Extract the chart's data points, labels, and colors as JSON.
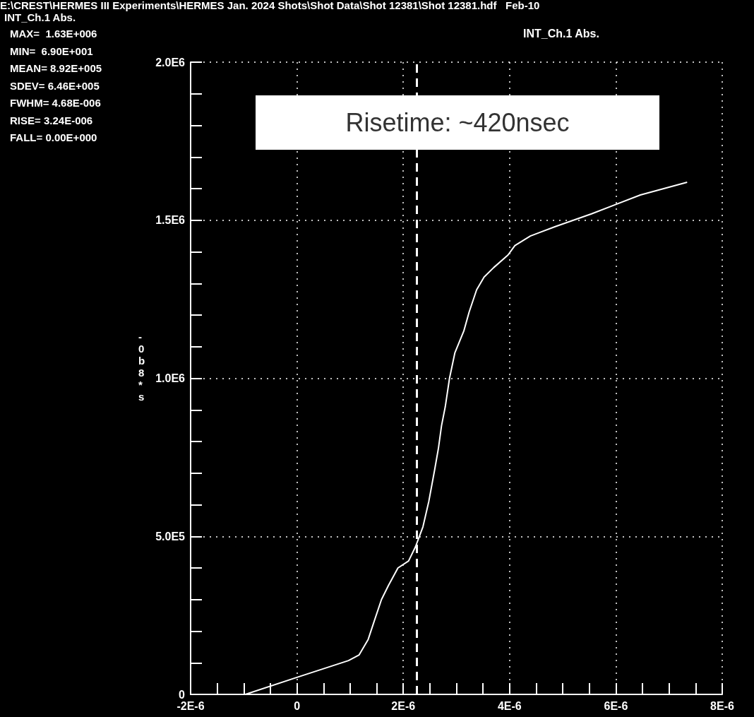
{
  "chart_data": {
    "type": "line",
    "title": "INT_Ch.1 Abs.",
    "ylabel": "-0b8*s",
    "annotations": [
      "E:\\CREST\\HERMES III Experiments\\HERMES Jan. 2024 Shots\\Shot Data\\Shot 12381\\Shot 12381.hdf   Feb-10",
      "INT_Ch.1 Abs.",
      "MAX=  1.63E+006",
      "MIN=  6.90E+001",
      "MEAN= 8.92E+005",
      "SDEV= 6.46E+005",
      "FWHM= 4.68E-006",
      "RISE= 3.24E-006",
      "FALL= 0.00E+000",
      "Risetime: ~420nsec"
    ],
    "x": [
      -9.7e-07,
      0,
      9.7e-07,
      1.17e-06,
      1.34e-06,
      1.45e-06,
      1.59e-06,
      1.72e-06,
      1.9e-06,
      2.1e-06,
      2.23e-06,
      2.37e-06,
      2.48e-06,
      2.59e-06,
      2.66e-06,
      2.72e-06,
      2.79e-06,
      2.87e-06,
      2.97e-06,
      3.14e-06,
      3.24e-06,
      3.38e-06,
      3.52e-06,
      3.7e-06,
      3.97e-06,
      4.1e-06,
      4.39e-06,
      4.86e-06,
      5.54e-06,
      6e-06,
      6.46e-06,
      7.34e-06
    ],
    "series": [
      {
        "color": "#ffffff",
        "values": [
          0,
          54000,
          107000,
          125000,
          174000,
          230000,
          300000,
          344000,
          400000,
          422000,
          467000,
          530000,
          610000,
          710000,
          777000,
          850000,
          910000,
          1000000,
          1080000,
          1150000,
          1210000,
          1280000,
          1320000,
          1350000,
          1390000,
          1420000,
          1450000,
          1480000,
          1520000,
          1550000,
          1580000,
          1620000
        ]
      }
    ],
    "xlim": [
      -2e-06,
      8e-06
    ],
    "xticks": [
      {
        "value": -2e-06,
        "label": "-2E-6"
      },
      {
        "value": -1.5e-06,
        "label": null
      },
      {
        "value": -1e-06,
        "label": null
      },
      {
        "value": -5e-07,
        "label": null
      },
      {
        "value": 0,
        "label": "0"
      },
      {
        "value": 5e-07,
        "label": null
      },
      {
        "value": 1e-06,
        "label": null
      },
      {
        "value": 1.5e-06,
        "label": null
      },
      {
        "value": 2e-06,
        "label": "2E-6"
      },
      {
        "value": 2.5e-06,
        "label": null
      },
      {
        "value": 3e-06,
        "label": null
      },
      {
        "value": 3.5e-06,
        "label": null
      },
      {
        "value": 4e-06,
        "label": "4E-6"
      },
      {
        "value": 4.5e-06,
        "label": null
      },
      {
        "value": 5e-06,
        "label": null
      },
      {
        "value": 5.5e-06,
        "label": null
      },
      {
        "value": 6e-06,
        "label": "6E-6"
      },
      {
        "value": 6.5e-06,
        "label": null
      },
      {
        "value": 7e-06,
        "label": null
      },
      {
        "value": 7.5e-06,
        "label": null
      },
      {
        "value": 8e-06,
        "label": "8E-6"
      }
    ],
    "ylim": [
      0,
      2000000
    ],
    "yticks": [
      0,
      {
        "value": 100000,
        "label": null
      },
      {
        "value": 200000,
        "label": null
      },
      {
        "value": 300000,
        "label": null
      },
      {
        "value": 400000,
        "label": null
      },
      {
        "value": 500000,
        "label": "5.0E5"
      },
      {
        "value": 600000,
        "label": null
      },
      {
        "value": 700000,
        "label": null
      },
      {
        "value": 800000,
        "label": null
      },
      {
        "value": 900000,
        "label": null
      },
      {
        "value": 1000000,
        "label": "1.0E6"
      },
      {
        "value": 1100000,
        "label": null
      },
      {
        "value": 1200000,
        "label": null
      },
      {
        "value": 1300000,
        "label": null
      },
      {
        "value": 1400000,
        "label": null
      },
      {
        "value": 1500000,
        "label": "1.5E6"
      },
      {
        "value": 1600000,
        "label": null
      },
      {
        "value": 1700000,
        "label": null
      },
      {
        "value": 1800000,
        "label": null
      },
      {
        "value": 1900000,
        "label": null
      },
      {
        "value": 2000000,
        "label": "2.0E6"
      }
    ],
    "ref_lines": [
      {
        "axis": "x",
        "value": 2.25e-06,
        "color": "#ffffff",
        "line_style": "dashed"
      }
    ],
    "grid": true,
    "marker": "none",
    "line_style": "solid"
  }
}
